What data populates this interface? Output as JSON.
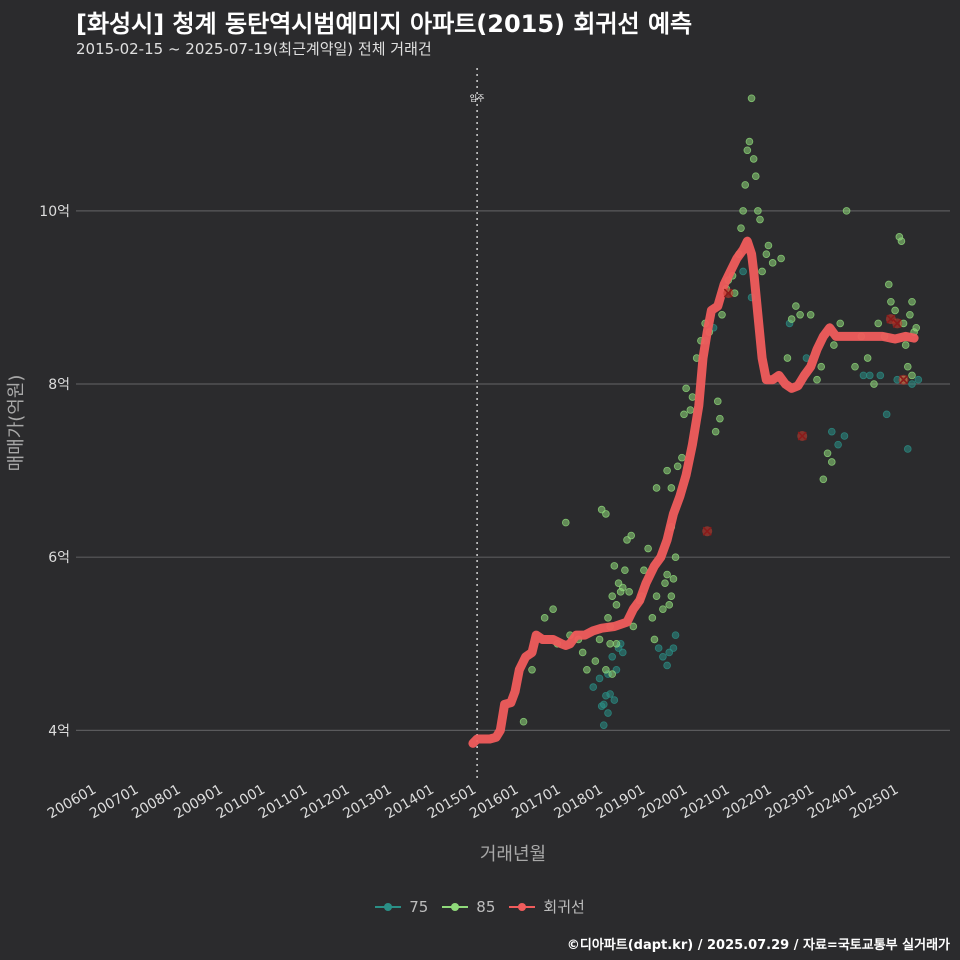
{
  "title": "[화성시] 청계 동탄역시범예미지 아파트(2015) 회귀선 예측",
  "subtitle": "2015-02-15 ~ 2025-07-19(최근계약일) 전체 거래건",
  "credit": "©디아파트(dapt.kr) / 2025.07.29 / 자료=국토교통부 실거래가",
  "colors": {
    "s75": "#2a8f86",
    "s85": "#8fd97a",
    "regression": "#f05c5c",
    "background": "#2b2b2d"
  },
  "chart_data": {
    "type": "scatter",
    "xlabel": "거래년월",
    "ylabel": "매매가(억원)",
    "x_ticks": [
      "200601",
      "200701",
      "200801",
      "200901",
      "201001",
      "201101",
      "201201",
      "201301",
      "201401",
      "201501",
      "201601",
      "201701",
      "201801",
      "201901",
      "202001",
      "202101",
      "202201",
      "202301",
      "202401",
      "202501"
    ],
    "x_range": [
      2005.5,
      2026.2
    ],
    "y_ticks": [
      {
        "value": 4,
        "label": "4억"
      },
      {
        "value": 6,
        "label": "6억"
      },
      {
        "value": 8,
        "label": "8억"
      },
      {
        "value": 10,
        "label": "10억"
      }
    ],
    "y_range": [
      3.45,
      11.65
    ],
    "annotation": {
      "label": "입주",
      "x": 2015.0
    },
    "legend": [
      {
        "name": "75",
        "color": "#2a8f86"
      },
      {
        "name": "85",
        "color": "#8fd97a"
      },
      {
        "name": "회귀선",
        "color": "#f05c5c"
      }
    ],
    "series": [
      {
        "name": "75",
        "points": [
          [
            2017.75,
            4.5
          ],
          [
            2017.9,
            4.6
          ],
          [
            2018.0,
            4.3
          ],
          [
            2018.05,
            4.4
          ],
          [
            2018.1,
            4.2
          ],
          [
            2017.95,
            4.28
          ],
          [
            2018.0,
            4.06
          ],
          [
            2018.15,
            4.42
          ],
          [
            2018.25,
            4.35
          ],
          [
            2018.35,
            4.95
          ],
          [
            2018.4,
            5.0
          ],
          [
            2018.3,
            4.7
          ],
          [
            2018.2,
            4.85
          ],
          [
            2018.45,
            4.9
          ],
          [
            2018.1,
            4.65
          ],
          [
            2019.3,
            4.95
          ],
          [
            2019.4,
            4.85
          ],
          [
            2019.55,
            4.9
          ],
          [
            2019.65,
            4.95
          ],
          [
            2019.7,
            5.1
          ],
          [
            2019.5,
            4.75
          ],
          [
            2020.4,
            8.5
          ],
          [
            2020.6,
            8.65
          ],
          [
            2021.3,
            9.3
          ],
          [
            2021.5,
            9.0
          ],
          [
            2022.4,
            8.7
          ],
          [
            2022.8,
            8.3
          ],
          [
            2023.4,
            7.45
          ],
          [
            2023.55,
            7.3
          ],
          [
            2023.7,
            7.4
          ],
          [
            2024.15,
            8.1
          ],
          [
            2024.3,
            8.1
          ],
          [
            2024.55,
            8.1
          ],
          [
            2024.7,
            7.65
          ],
          [
            2024.95,
            8.05
          ],
          [
            2025.2,
            7.25
          ],
          [
            2025.3,
            8.0
          ],
          [
            2025.45,
            8.05
          ]
        ]
      },
      {
        "name": "85",
        "points": [
          [
            2016.1,
            4.1
          ],
          [
            2016.3,
            4.7
          ],
          [
            2016.6,
            5.3
          ],
          [
            2016.8,
            5.4
          ],
          [
            2016.9,
            5.0
          ],
          [
            2017.2,
            5.1
          ],
          [
            2017.4,
            5.05
          ],
          [
            2017.5,
            4.9
          ],
          [
            2017.1,
            6.4
          ],
          [
            2017.6,
            4.7
          ],
          [
            2017.8,
            4.8
          ],
          [
            2017.9,
            5.05
          ],
          [
            2017.95,
            6.55
          ],
          [
            2018.05,
            6.5
          ],
          [
            2018.1,
            5.3
          ],
          [
            2018.15,
            5.2
          ],
          [
            2018.2,
            5.55
          ],
          [
            2018.25,
            5.9
          ],
          [
            2018.3,
            5.45
          ],
          [
            2018.35,
            5.7
          ],
          [
            2018.45,
            5.65
          ],
          [
            2018.5,
            5.85
          ],
          [
            2018.55,
            6.2
          ],
          [
            2018.65,
            6.25
          ],
          [
            2018.15,
            5.0
          ],
          [
            2018.05,
            4.7
          ],
          [
            2018.2,
            4.65
          ],
          [
            2018.3,
            5.0
          ],
          [
            2018.4,
            5.6
          ],
          [
            2018.6,
            5.6
          ],
          [
            2018.7,
            5.2
          ],
          [
            2018.85,
            5.5
          ],
          [
            2018.9,
            5.55
          ],
          [
            2018.95,
            5.85
          ],
          [
            2019.05,
            6.1
          ],
          [
            2019.15,
            5.3
          ],
          [
            2019.2,
            5.05
          ],
          [
            2019.25,
            5.55
          ],
          [
            2019.4,
            5.4
          ],
          [
            2019.45,
            5.7
          ],
          [
            2019.5,
            5.8
          ],
          [
            2019.55,
            5.45
          ],
          [
            2019.6,
            5.55
          ],
          [
            2019.65,
            5.75
          ],
          [
            2019.7,
            6.0
          ],
          [
            2019.6,
            6.35
          ],
          [
            2019.25,
            6.8
          ],
          [
            2019.5,
            7.0
          ],
          [
            2019.6,
            6.8
          ],
          [
            2019.75,
            7.05
          ],
          [
            2019.85,
            7.15
          ],
          [
            2019.9,
            7.65
          ],
          [
            2019.95,
            7.95
          ],
          [
            2020.05,
            7.7
          ],
          [
            2020.1,
            7.85
          ],
          [
            2020.2,
            8.3
          ],
          [
            2020.3,
            8.5
          ],
          [
            2020.4,
            8.7
          ],
          [
            2020.5,
            8.6
          ],
          [
            2020.65,
            7.45
          ],
          [
            2020.7,
            7.8
          ],
          [
            2020.75,
            7.6
          ],
          [
            2020.8,
            8.8
          ],
          [
            2020.9,
            9.1
          ],
          [
            2020.95,
            9.2
          ],
          [
            2021.05,
            9.25
          ],
          [
            2021.1,
            9.05
          ],
          [
            2021.2,
            9.5
          ],
          [
            2021.25,
            9.8
          ],
          [
            2021.3,
            10.0
          ],
          [
            2021.35,
            10.3
          ],
          [
            2021.4,
            10.7
          ],
          [
            2021.45,
            10.8
          ],
          [
            2021.5,
            11.3
          ],
          [
            2021.55,
            10.6
          ],
          [
            2021.6,
            10.4
          ],
          [
            2021.65,
            10.0
          ],
          [
            2021.7,
            9.9
          ],
          [
            2021.75,
            9.3
          ],
          [
            2021.85,
            9.5
          ],
          [
            2021.9,
            9.6
          ],
          [
            2022.0,
            9.4
          ],
          [
            2022.2,
            9.45
          ],
          [
            2022.35,
            8.3
          ],
          [
            2022.45,
            8.75
          ],
          [
            2022.55,
            8.9
          ],
          [
            2022.65,
            8.8
          ],
          [
            2022.9,
            8.8
          ],
          [
            2023.05,
            8.05
          ],
          [
            2023.15,
            8.2
          ],
          [
            2023.2,
            6.9
          ],
          [
            2023.3,
            7.2
          ],
          [
            2023.4,
            7.1
          ],
          [
            2023.45,
            8.45
          ],
          [
            2023.6,
            8.7
          ],
          [
            2023.75,
            10.0
          ],
          [
            2023.95,
            8.2
          ],
          [
            2024.1,
            8.55
          ],
          [
            2024.25,
            8.3
          ],
          [
            2024.4,
            8.0
          ],
          [
            2024.5,
            8.7
          ],
          [
            2024.65,
            8.55
          ],
          [
            2024.75,
            9.15
          ],
          [
            2024.8,
            8.95
          ],
          [
            2024.9,
            8.85
          ],
          [
            2025.0,
            9.7
          ],
          [
            2025.05,
            9.65
          ],
          [
            2025.1,
            8.7
          ],
          [
            2025.15,
            8.45
          ],
          [
            2025.25,
            8.8
          ],
          [
            2025.3,
            8.95
          ],
          [
            2025.35,
            8.6
          ],
          [
            2025.4,
            8.65
          ],
          [
            2025.1,
            8.05
          ],
          [
            2025.2,
            8.2
          ],
          [
            2025.3,
            8.1
          ]
        ]
      },
      {
        "name": "회귀선",
        "points": [
          [
            2014.9,
            3.85
          ],
          [
            2015.0,
            3.9
          ],
          [
            2015.3,
            3.9
          ],
          [
            2015.45,
            3.92
          ],
          [
            2015.55,
            4.0
          ],
          [
            2015.65,
            4.3
          ],
          [
            2015.8,
            4.32
          ],
          [
            2015.9,
            4.45
          ],
          [
            2016.0,
            4.7
          ],
          [
            2016.15,
            4.85
          ],
          [
            2016.3,
            4.9
          ],
          [
            2016.4,
            5.1
          ],
          [
            2016.55,
            5.05
          ],
          [
            2016.8,
            5.05
          ],
          [
            2017.0,
            5.0
          ],
          [
            2017.1,
            4.98
          ],
          [
            2017.2,
            5.0
          ],
          [
            2017.35,
            5.1
          ],
          [
            2017.55,
            5.1
          ],
          [
            2017.75,
            5.15
          ],
          [
            2017.95,
            5.18
          ],
          [
            2018.25,
            5.2
          ],
          [
            2018.55,
            5.25
          ],
          [
            2018.7,
            5.4
          ],
          [
            2018.85,
            5.5
          ],
          [
            2019.0,
            5.7
          ],
          [
            2019.2,
            5.9
          ],
          [
            2019.35,
            6.0
          ],
          [
            2019.5,
            6.2
          ],
          [
            2019.65,
            6.5
          ],
          [
            2019.8,
            6.7
          ],
          [
            2019.95,
            6.95
          ],
          [
            2020.1,
            7.3
          ],
          [
            2020.25,
            7.75
          ],
          [
            2020.35,
            8.3
          ],
          [
            2020.45,
            8.6
          ],
          [
            2020.55,
            8.85
          ],
          [
            2020.7,
            8.9
          ],
          [
            2020.85,
            9.15
          ],
          [
            2021.0,
            9.3
          ],
          [
            2021.15,
            9.45
          ],
          [
            2021.3,
            9.55
          ],
          [
            2021.4,
            9.65
          ],
          [
            2021.5,
            9.5
          ],
          [
            2021.55,
            9.3
          ],
          [
            2021.65,
            8.8
          ],
          [
            2021.75,
            8.3
          ],
          [
            2021.85,
            8.05
          ],
          [
            2022.0,
            8.05
          ],
          [
            2022.15,
            8.1
          ],
          [
            2022.3,
            8.0
          ],
          [
            2022.45,
            7.95
          ],
          [
            2022.6,
            7.98
          ],
          [
            2022.75,
            8.1
          ],
          [
            2022.9,
            8.2
          ],
          [
            2023.05,
            8.4
          ],
          [
            2023.2,
            8.55
          ],
          [
            2023.35,
            8.65
          ],
          [
            2023.5,
            8.55
          ],
          [
            2023.75,
            8.55
          ],
          [
            2024.0,
            8.55
          ],
          [
            2024.3,
            8.55
          ],
          [
            2024.6,
            8.55
          ],
          [
            2024.9,
            8.52
          ],
          [
            2025.15,
            8.55
          ],
          [
            2025.35,
            8.53
          ]
        ]
      }
    ],
    "outliers": [
      [
        2020.45,
        6.3
      ],
      [
        2020.95,
        9.05
      ],
      [
        2022.7,
        7.4
      ],
      [
        2024.8,
        8.75
      ],
      [
        2024.95,
        8.7
      ],
      [
        2025.1,
        8.05
      ]
    ]
  }
}
